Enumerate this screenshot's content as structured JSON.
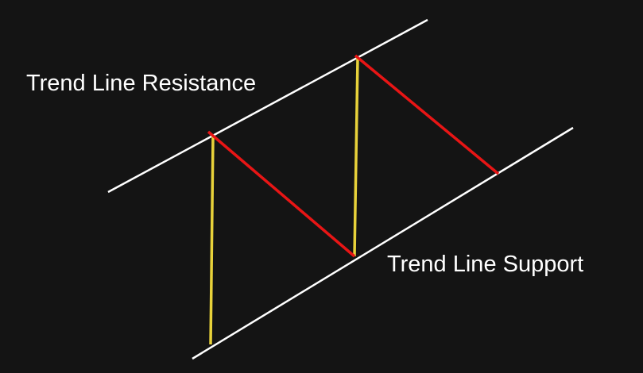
{
  "labels": {
    "resistance": "Trend Line Resistance",
    "support": "Trend Line Support"
  },
  "colors": {
    "background": "#141414",
    "trend_lines": "#ffffff",
    "vertical_moves": "#e8d23a",
    "diagonal_moves": "#e81515",
    "text": "#ffffff"
  },
  "trend_lines": [
    {
      "name": "resistance"
    },
    {
      "name": "support"
    }
  ]
}
